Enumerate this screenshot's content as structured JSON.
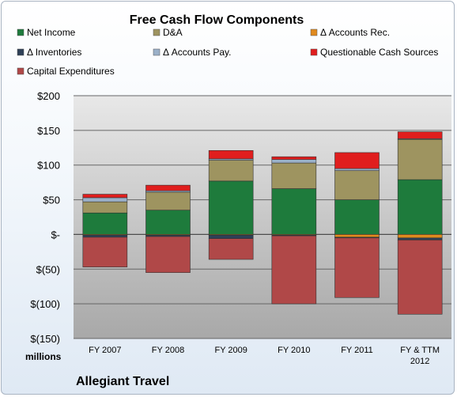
{
  "chart_data": {
    "type": "bar",
    "stacked": true,
    "title": "Free Cash Flow Components",
    "units_label": "millions",
    "company": "Allegiant Travel",
    "categories": [
      "FY 2007",
      "FY 2008",
      "FY 2009",
      "FY 2010",
      "FY 2011",
      "FY & TTM\n2012"
    ],
    "ylim": [
      -150,
      200
    ],
    "yticks": [
      {
        "value": 200,
        "label": "$200"
      },
      {
        "value": 150,
        "label": "$150"
      },
      {
        "value": 100,
        "label": "$100"
      },
      {
        "value": 50,
        "label": "$50"
      },
      {
        "value": 0,
        "label": "$-"
      },
      {
        "value": -50,
        "label": "$(50)"
      },
      {
        "value": -100,
        "label": "$(100)"
      },
      {
        "value": -150,
        "label": "$(150)"
      }
    ],
    "grid": true,
    "legend_position": "top",
    "series": [
      {
        "name": "Net Income",
        "color": "#1e7b3c",
        "values": [
          31,
          35,
          77,
          66,
          50,
          79
        ]
      },
      {
        "name": "D&A",
        "color": "#9e9460",
        "values": [
          16,
          26,
          30,
          37,
          42,
          58
        ]
      },
      {
        "name": "Δ Accounts Rec.",
        "color": "#e08a1e",
        "values": [
          -1,
          -1,
          -1,
          -1,
          -4,
          -5
        ]
      },
      {
        "name": "Δ Inventories",
        "color": "#2e4057",
        "values": [
          -3,
          -2,
          -5,
          -1,
          -1,
          -3
        ]
      },
      {
        "name": "Δ Accounts Pay.",
        "color": "#9bb0c8",
        "values": [
          6,
          2,
          2,
          5,
          3,
          1
        ]
      },
      {
        "name": "Questionable Cash Sources",
        "color": "#e01e1e",
        "values": [
          5,
          8,
          12,
          4,
          23,
          10
        ]
      },
      {
        "name": "Capital Expenditures",
        "color": "#b04848",
        "values": [
          -43,
          -52,
          -30,
          -98,
          -86,
          -107
        ]
      }
    ]
  }
}
